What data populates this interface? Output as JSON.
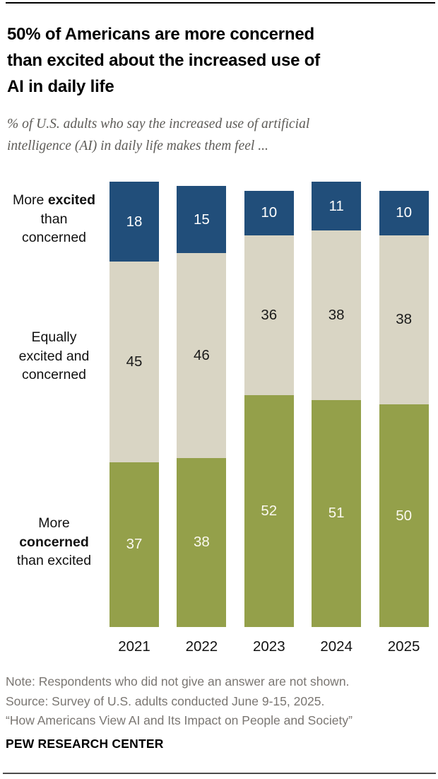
{
  "header": {
    "title_lines": [
      "50% of Americans are more concerned",
      "than excited about the increased use of",
      "AI in daily life"
    ],
    "subtitle_lines": [
      "% of U.S. adults who say the increased use of artificial",
      "intelligence (AI) in daily life makes them feel ..."
    ]
  },
  "side_labels": {
    "excited": {
      "l1_pre": "More",
      "l1_bold": "excited",
      "l2": "than",
      "l3": "concerned"
    },
    "equal": {
      "l1": "Equally",
      "l2": "excited and",
      "l3": "concerned"
    },
    "concerned": {
      "l1": "More",
      "l2_bold": "concerned",
      "l3": "than excited"
    }
  },
  "chart_data": {
    "type": "bar",
    "stacked": true,
    "orientation": "vertical",
    "unit": "% of U.S. adults",
    "categories": [
      "2021",
      "2022",
      "2023",
      "2024",
      "2025"
    ],
    "series": [
      {
        "name": "More excited than concerned",
        "color": "#214e7a",
        "label_color": "#ffffff",
        "values": [
          18,
          15,
          10,
          11,
          10
        ]
      },
      {
        "name": "Equally excited and concerned",
        "color": "#d9d5c4",
        "label_color": "#1a1a1a",
        "values": [
          45,
          46,
          36,
          38,
          38
        ]
      },
      {
        "name": "More concerned than excited",
        "color": "#94a04a",
        "label_color": "#fbf9f0",
        "values": [
          37,
          38,
          52,
          51,
          50
        ]
      }
    ],
    "ylim": [
      0,
      100
    ],
    "grid": false,
    "legend_position": "left-category-labels"
  },
  "footer": {
    "note": "Note: Respondents who did not give an answer are not shown.",
    "source": "Source: Survey of U.S. adults conducted June 9-15, 2025.",
    "quote": "“How Americans View AI and Its Impact on People and Society”",
    "brand": "PEW RESEARCH CENTER"
  }
}
